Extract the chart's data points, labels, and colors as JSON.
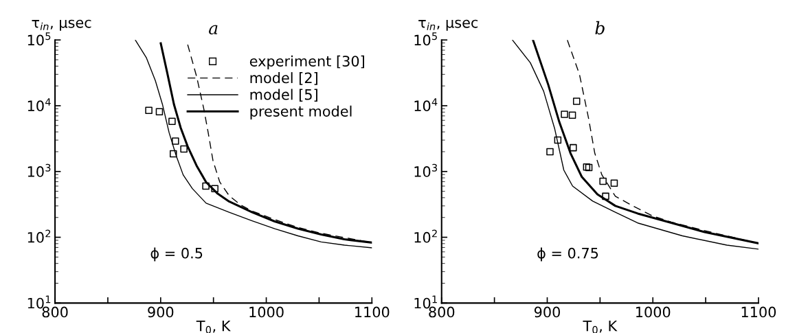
{
  "chart_data": [
    {
      "type": "line",
      "title": "a",
      "xlabel": "T$_{0}$, K",
      "ylabel": "τ$_{in}$, μsec",
      "log": "y",
      "xlim": [
        800,
        1100
      ],
      "ylim": [
        10,
        100000
      ],
      "xticks": [
        800,
        {
          "value": 850,
          "label": null
        },
        900,
        {
          "value": 950,
          "label": null
        },
        1000,
        {
          "value": 1050,
          "label": null
        },
        1100
      ],
      "yticks": [
        {
          "value": 10,
          "label": "10$^{1}$"
        },
        {
          "value": 100,
          "label": "10$^{2}$"
        },
        {
          "value": 1000,
          "label": "10$^{3}$"
        },
        {
          "value": 10000,
          "label": "10$^{4}$"
        },
        {
          "value": 100000,
          "label": "10$^{5}$"
        }
      ],
      "legend": "top right",
      "grid": false,
      "annotations": [
        "ϕ = 0.5"
      ],
      "series": [
        {
          "name": "experiment [30]",
          "type": "scatter",
          "marker": "square",
          "color": "#000000",
          "x": [
            888.8,
            898.8,
            910.8,
            914,
            912,
            922,
            942.8,
            951.3
          ],
          "values": [
            8500,
            8100,
            5800,
            2900,
            1860,
            2200,
            600,
            550
          ]
        },
        {
          "name": "model [2]",
          "line_style": "dashed",
          "color": "#000000",
          "x": [
            925.6,
            934,
            940.9,
            945,
            949.6,
            956,
            964.8,
            975.7,
            986.6,
            1008,
            1030,
            1052,
            1100
          ],
          "values": [
            85000,
            28000,
            8900,
            3900,
            1450,
            690,
            430,
            310,
            250,
            186,
            141,
            115,
            83
          ]
        },
        {
          "name": "model [5]",
          "line_style": "solid",
          "color": "#000000",
          "x": [
            876,
            886.4,
            895,
            901.7,
            908,
            914.7,
            921.3,
            930,
            943,
            964.8,
            986.6,
            1008,
            1030,
            1052,
            1074,
            1100
          ],
          "values": [
            100000,
            54000,
            24000,
            10500,
            3900,
            1740,
            890,
            550,
            330,
            240,
            178,
            135,
            105,
            85,
            76,
            69
          ]
        },
        {
          "name": "present model",
          "line_style": "solid",
          "color": "#000000",
          "x": [
            900.1,
            906,
            912.6,
            919,
            925.6,
            934,
            943,
            954,
            964.8,
            986.6,
            1008,
            1030,
            1052,
            1074,
            1100
          ],
          "values": [
            89000,
            33000,
            10500,
            4600,
            2400,
            1230,
            690,
            460,
            350,
            240,
            174,
            135,
            110,
            93,
            83
          ]
        }
      ]
    },
    {
      "type": "line",
      "title": "b",
      "xlabel": "T$_{0}$, K",
      "ylabel": "τ$_{in}$, μsec",
      "log": "y",
      "xlim": [
        800,
        1100
      ],
      "ylim": [
        10,
        100000
      ],
      "xticks": [
        800,
        {
          "value": 850,
          "label": null
        },
        900,
        {
          "value": 950,
          "label": null
        },
        1000,
        {
          "value": 1050,
          "label": null
        },
        1100
      ],
      "yticks": [
        {
          "value": 10,
          "label": "10$^{1}$"
        },
        {
          "value": 100,
          "label": "10$^{2}$"
        },
        {
          "value": 1000,
          "label": "10$^{3}$"
        },
        {
          "value": 10000,
          "label": "10$^{4}$"
        },
        {
          "value": 100000,
          "label": "10$^{5}$"
        }
      ],
      "legend": false,
      "grid": false,
      "annotations": [
        "ϕ = 0.75"
      ],
      "series": [
        {
          "type": "scatter",
          "marker": "square",
          "color": "#000000",
          "x": [
            927.8,
            916.3,
            923.8,
            910,
            924.6,
            902.6,
            937.3,
            939.4,
            952.8,
            963.4,
            955.3
          ],
          "values": [
            11700,
            7400,
            7200,
            3000,
            2300,
            2000,
            1170,
            1150,
            710,
            665,
            420
          ]
        },
        {
          "line_style": "dashed",
          "color": "#000000",
          "x": [
            919,
            930.5,
            939,
            945,
            951.7,
            964.5,
            981,
            1000,
            1017.4,
            1049,
            1100
          ],
          "values": [
            100000,
            30000,
            6600,
            1900,
            890,
            420,
            300,
            210,
            170,
            126,
            81
          ]
        },
        {
          "line_style": "solid",
          "color": "#000000",
          "x": [
            867,
            884,
            896.6,
            907,
            915.7,
            924,
            943,
            964.5,
            985.6,
            1028,
            1070,
            1100
          ],
          "values": [
            100000,
            45000,
            16600,
            4500,
            1050,
            600,
            355,
            240,
            165,
            105,
            76,
            66
          ]
        },
        {
          "line_style": "solid",
          "color": "#000000",
          "x": [
            886.5,
            900.9,
            911.5,
            922,
            932.7,
            947.5,
            964.5,
            985.6,
            1017.4,
            1049,
            1100
          ],
          "values": [
            100000,
            21000,
            5600,
            1900,
            830,
            450,
            300,
            230,
            166,
            120,
            81
          ]
        }
      ]
    }
  ]
}
